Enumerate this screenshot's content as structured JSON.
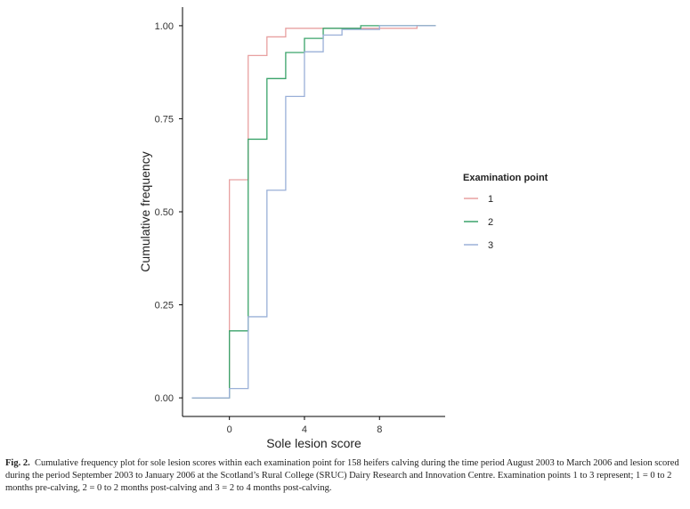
{
  "chart_data": {
    "type": "line",
    "step": true,
    "xlabel": "Sole lesion score",
    "ylabel": "Cumulative frequency",
    "x_ticks": [
      0,
      4,
      8
    ],
    "y_ticks": [
      0.0,
      0.25,
      0.5,
      0.75,
      1.0
    ],
    "y_tick_labels": [
      "0.00",
      "0.25",
      "0.50",
      "0.75",
      "1.00"
    ],
    "xlim": [
      -2.5,
      11.5
    ],
    "ylim": [
      -0.05,
      1.05
    ],
    "legend_title": "Examination point",
    "legend_position": "right",
    "series": [
      {
        "name": "1",
        "color": "#e8a0a0",
        "x": [
          -2,
          0,
          1,
          2,
          3,
          4,
          5,
          6,
          7,
          8,
          9,
          10,
          11
        ],
        "y": [
          0.0,
          0.586,
          0.92,
          0.97,
          0.993,
          0.993,
          0.993,
          0.993,
          0.993,
          0.993,
          0.993,
          1.0,
          1.0
        ]
      },
      {
        "name": "2",
        "color": "#3aa36a",
        "x": [
          -2,
          0,
          1,
          2,
          3,
          4,
          5,
          6,
          7,
          8,
          9,
          10,
          11
        ],
        "y": [
          0.0,
          0.18,
          0.695,
          0.858,
          0.928,
          0.966,
          0.993,
          0.993,
          1.0,
          1.0,
          1.0,
          1.0,
          1.0
        ]
      },
      {
        "name": "3",
        "color": "#9ab0d8",
        "x": [
          -2,
          0,
          1,
          2,
          3,
          4,
          5,
          6,
          7,
          8,
          9,
          10,
          11
        ],
        "y": [
          0.0,
          0.025,
          0.218,
          0.558,
          0.81,
          0.93,
          0.975,
          0.99,
          0.99,
          1.0,
          1.0,
          1.0,
          1.0
        ]
      }
    ]
  },
  "caption": {
    "label": "Fig. 2.",
    "text": "Cumulative frequency plot for sole lesion scores within each examination point for 158 heifers calving during the time period August 2003 to March 2006 and lesion scored during the period September 2003 to January 2006 at the Scotland’s Rural College (SRUC) Dairy Research and Innovation Centre. Examination points 1 to 3 represent; 1 = 0 to 2 months pre-calving, 2 = 0 to 2 months post-calving and 3 = 2 to 4 months post-calving."
  }
}
